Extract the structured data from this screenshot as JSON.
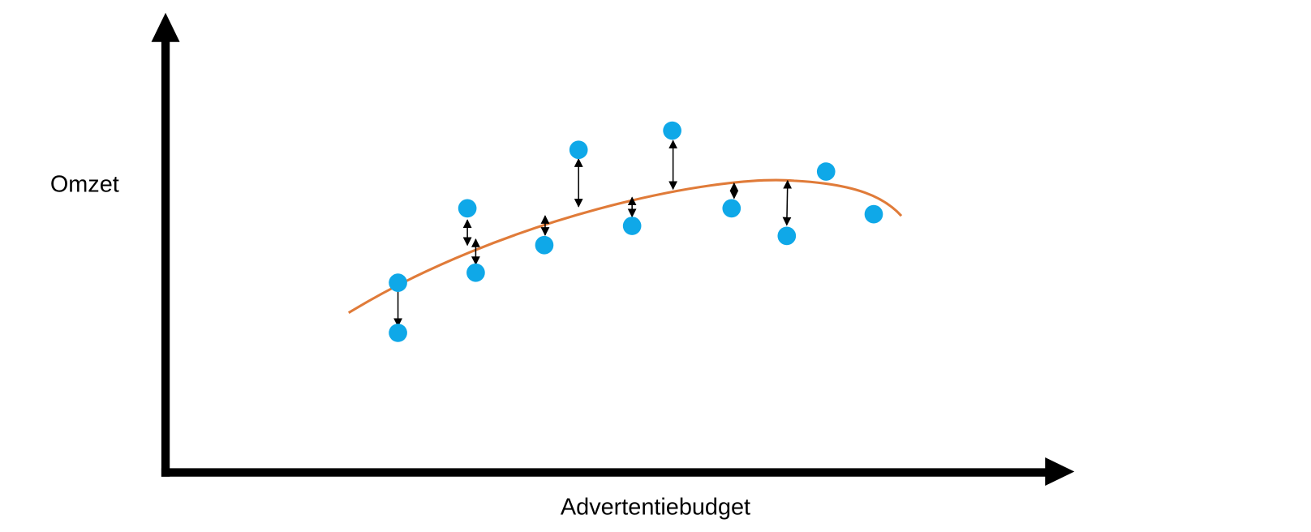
{
  "axes": {
    "y_label": "Omzet",
    "x_label": "Advertentiebudget"
  }
}
